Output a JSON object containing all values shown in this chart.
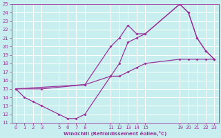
{
  "xlabel": "Windchill (Refroidissement éolien,°C)",
  "xlim": [
    -0.5,
    23.5
  ],
  "ylim": [
    11,
    25
  ],
  "xticks": [
    0,
    1,
    2,
    3,
    5,
    6,
    7,
    8,
    11,
    12,
    13,
    14,
    15,
    19,
    20,
    21,
    22,
    23
  ],
  "yticks": [
    11,
    12,
    13,
    14,
    15,
    16,
    17,
    18,
    19,
    20,
    21,
    22,
    23,
    24,
    25
  ],
  "bg_color": "#c8eef0",
  "grid_color": "#aadddd",
  "line_color": "#993399",
  "line1_x": [
    0,
    1,
    2,
    3,
    5,
    6,
    7,
    8,
    11,
    12,
    13,
    14,
    15,
    19,
    20,
    21,
    22,
    23
  ],
  "line1_y": [
    15.0,
    14.0,
    13.5,
    13.0,
    12.0,
    11.5,
    11.5,
    12.0,
    16.5,
    18.0,
    20.5,
    21.0,
    21.5,
    25.0,
    24.0,
    21.0,
    19.5,
    18.5
  ],
  "line2_x": [
    0,
    3,
    8,
    11,
    12,
    13,
    14,
    15,
    19,
    20,
    21,
    22,
    23
  ],
  "line2_y": [
    15.0,
    15.0,
    15.5,
    20.0,
    21.0,
    22.5,
    21.5,
    21.5,
    25.0,
    24.0,
    21.0,
    19.5,
    18.5
  ],
  "line3_x": [
    0,
    8,
    11,
    12,
    13,
    14,
    15,
    19,
    20,
    21,
    22,
    23
  ],
  "line3_y": [
    15.0,
    15.5,
    16.5,
    16.5,
    17.0,
    17.5,
    18.0,
    18.5,
    18.5,
    18.5,
    18.5,
    18.5
  ]
}
